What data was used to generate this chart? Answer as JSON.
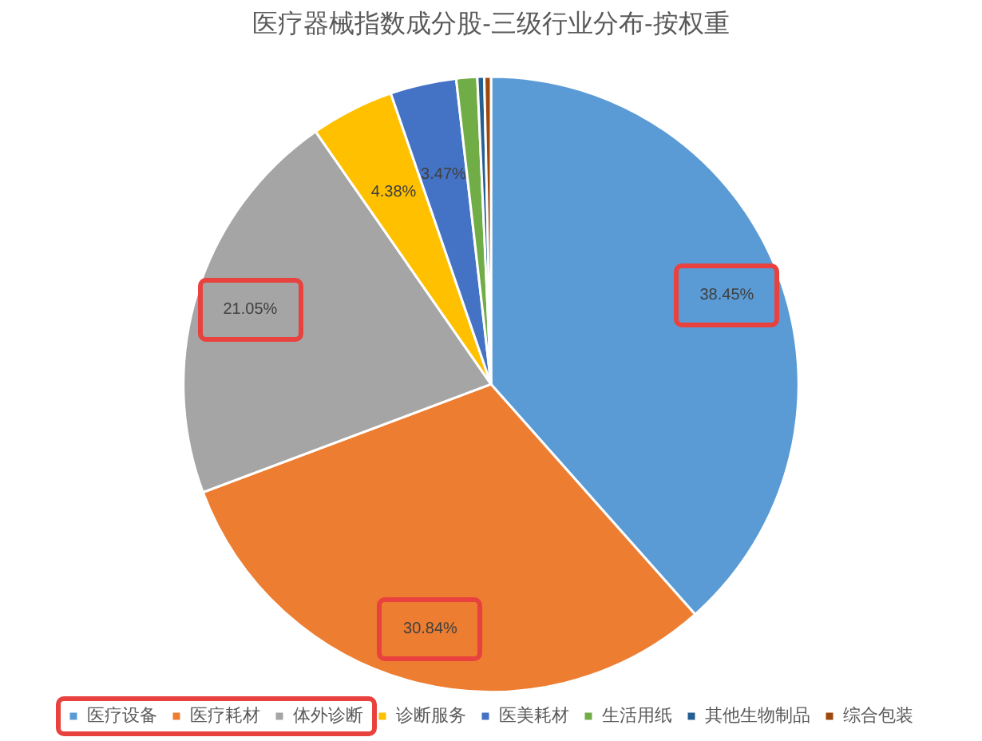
{
  "chart_data": {
    "type": "pie",
    "title": "医疗器械指数成分股-三级行业分布-按权重",
    "categories": [
      "医疗设备",
      "医疗耗材",
      "体外诊断",
      "诊断服务",
      "医美耗材",
      "生活用纸",
      "其他生物制品",
      "综合包装"
    ],
    "values": [
      38.45,
      30.84,
      21.05,
      4.38,
      3.47,
      1.1,
      0.36,
      0.35
    ],
    "value_labels": [
      "38.45%",
      "30.84%",
      "21.05%",
      "4.38%",
      "3.47%",
      null,
      null,
      null
    ],
    "colors": [
      "#5b9bd5",
      "#ed7d31",
      "#a5a5a5",
      "#ffc000",
      "#4472c4",
      "#70ad47",
      "#255e91",
      "#9e480e"
    ],
    "legend": "bottom"
  }
}
